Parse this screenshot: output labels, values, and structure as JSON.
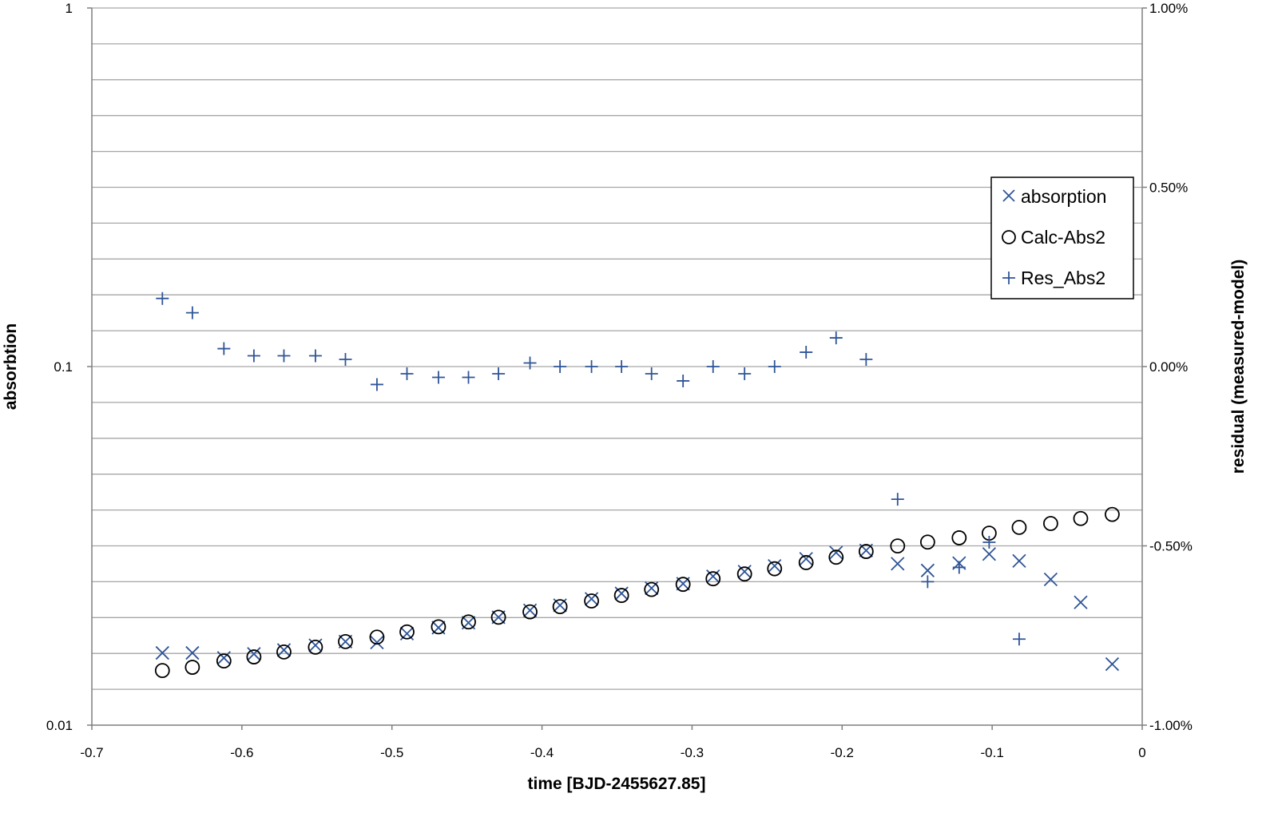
{
  "chart_data": {
    "type": "scatter",
    "title": "",
    "xlabel": "time [BJD-2455627.85]",
    "ylabel": "absorbtion",
    "y2label": "residual (measured-model)",
    "xlim": [
      -0.7,
      0
    ],
    "ylim": [
      0.01,
      1
    ],
    "yscale": "log",
    "y2lim": [
      -0.01,
      0.01
    ],
    "x_ticks": [
      "-0.7",
      "-0.6",
      "-0.5",
      "-0.4",
      "-0.3",
      "-0.2",
      "-0.1",
      "0"
    ],
    "y_ticks": [
      "1",
      "0.1",
      "0.01"
    ],
    "y2_ticks": [
      "1.00%",
      "0.50%",
      "0.00%",
      "-0.50%",
      "-1.00%"
    ],
    "grid": true,
    "legend_position": "right-inside",
    "series": [
      {
        "name": "absorption",
        "marker": "x",
        "color": "#2f5597",
        "axis": "left",
        "x": [
          -0.653,
          -0.633,
          -0.612,
          -0.592,
          -0.572,
          -0.551,
          -0.531,
          -0.51,
          -0.49,
          -0.469,
          -0.449,
          -0.429,
          -0.408,
          -0.388,
          -0.367,
          -0.347,
          -0.327,
          -0.306,
          -0.286,
          -0.265,
          -0.245,
          -0.224,
          -0.204,
          -0.184,
          -0.163,
          -0.143,
          -0.122,
          -0.102,
          -0.082,
          -0.061,
          -0.041,
          -0.02
        ],
        "y": [
          0.0159,
          0.0159,
          0.0154,
          0.0158,
          0.0162,
          0.0167,
          0.0171,
          0.017,
          0.018,
          0.0187,
          0.0193,
          0.02,
          0.0209,
          0.0216,
          0.0225,
          0.0233,
          0.0241,
          0.0248,
          0.026,
          0.0268,
          0.0278,
          0.0291,
          0.0303,
          0.0307,
          0.0282,
          0.027,
          0.0283,
          0.03,
          0.0287,
          0.0255,
          0.022,
          0.0148
        ]
      },
      {
        "name": "Calc-Abs2",
        "marker": "o",
        "color": "#000000",
        "axis": "left",
        "x": [
          -0.653,
          -0.633,
          -0.612,
          -0.592,
          -0.572,
          -0.551,
          -0.531,
          -0.51,
          -0.49,
          -0.469,
          -0.449,
          -0.429,
          -0.408,
          -0.388,
          -0.367,
          -0.347,
          -0.327,
          -0.306,
          -0.286,
          -0.265,
          -0.245,
          -0.224,
          -0.204,
          -0.184,
          -0.163,
          -0.143,
          -0.122,
          -0.102,
          -0.082,
          -0.061,
          -0.041,
          -0.02
        ],
        "y": [
          0.0142,
          0.0145,
          0.0151,
          0.0155,
          0.016,
          0.0165,
          0.0171,
          0.0176,
          0.0182,
          0.0188,
          0.0194,
          0.02,
          0.0207,
          0.0214,
          0.0222,
          0.023,
          0.0239,
          0.0247,
          0.0256,
          0.0264,
          0.0273,
          0.0284,
          0.0294,
          0.0305,
          0.0316,
          0.0324,
          0.0333,
          0.0343,
          0.0356,
          0.0365,
          0.0377,
          0.0387
        ]
      },
      {
        "name": "Res_Abs2",
        "marker": "+",
        "color": "#2f5597",
        "axis": "right",
        "x": [
          -0.653,
          -0.633,
          -0.612,
          -0.592,
          -0.572,
          -0.551,
          -0.531,
          -0.51,
          -0.49,
          -0.469,
          -0.449,
          -0.429,
          -0.408,
          -0.388,
          -0.367,
          -0.347,
          -0.327,
          -0.306,
          -0.286,
          -0.265,
          -0.245,
          -0.224,
          -0.204,
          -0.184,
          -0.163,
          -0.143,
          -0.122,
          -0.102,
          -0.082
        ],
        "y": [
          0.0019,
          0.0015,
          0.0005,
          0.0003,
          0.0003,
          0.0003,
          0.0002,
          -0.0005,
          -0.0002,
          -0.0003,
          -0.0003,
          -0.0002,
          0.0001,
          0.0,
          0.0,
          0.0,
          -0.0002,
          -0.0004,
          0.0,
          -0.0002,
          0.0,
          0.0004,
          0.0008,
          0.0002,
          -0.0037,
          -0.006,
          -0.0056,
          -0.0049,
          -0.0076
        ]
      }
    ]
  }
}
